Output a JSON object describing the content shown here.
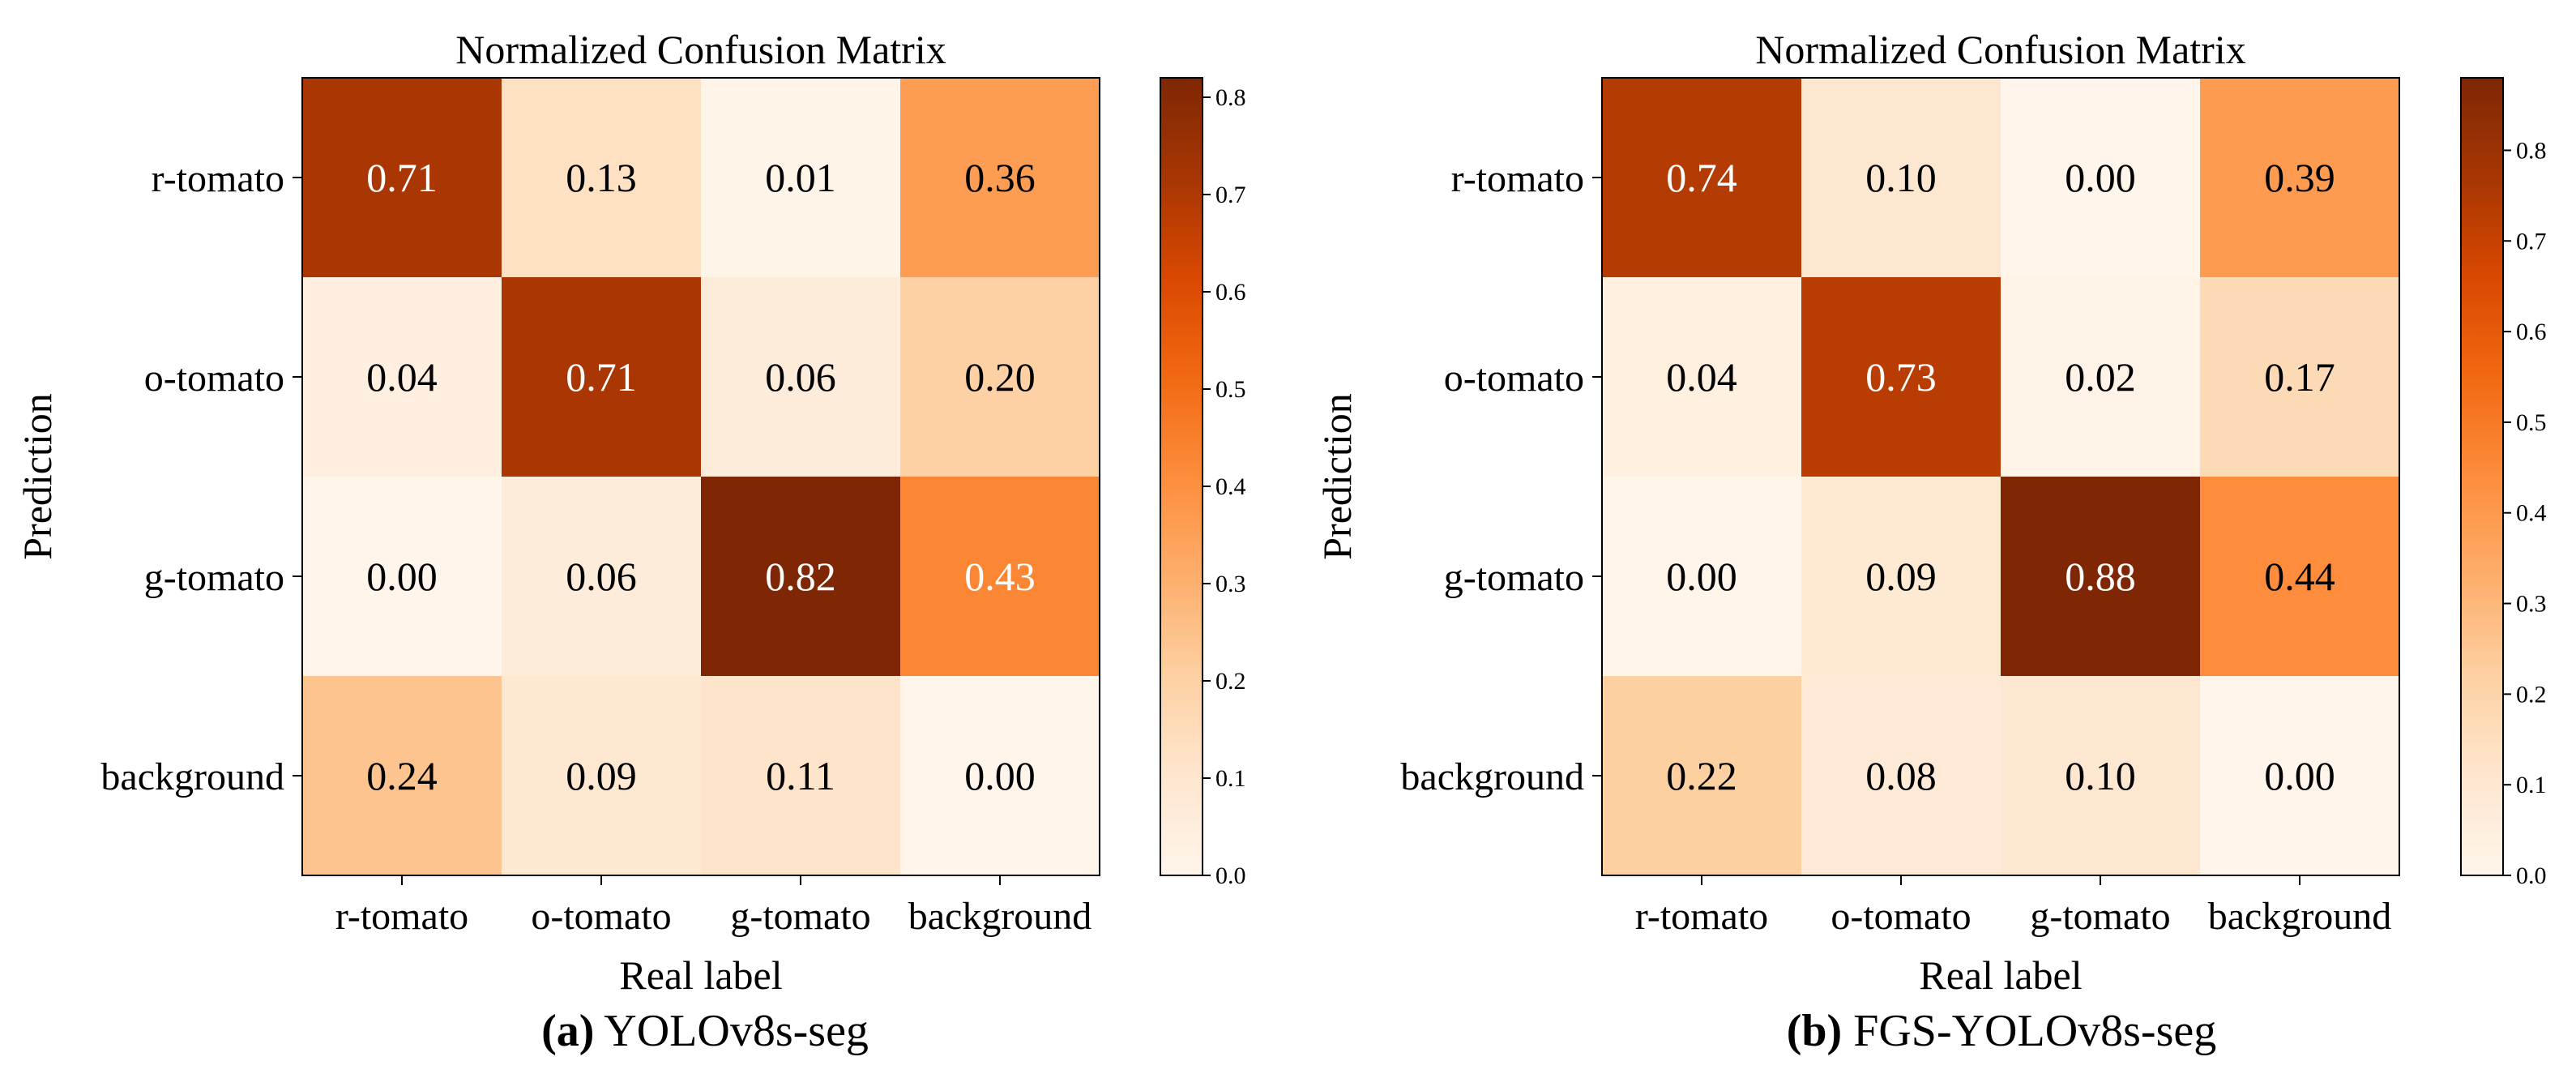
{
  "chart_data": [
    {
      "type": "heatmap",
      "title": "Normalized Confusion Matrix",
      "xlabel": "Real label",
      "ylabel": "Prediction",
      "x_categories": [
        "r-tomato",
        "o-tomato",
        "g-tomato",
        "background"
      ],
      "y_categories": [
        "r-tomato",
        "o-tomato",
        "g-tomato",
        "background"
      ],
      "values": [
        [
          0.71,
          0.13,
          0.01,
          0.36
        ],
        [
          0.04,
          0.71,
          0.06,
          0.2
        ],
        [
          0.0,
          0.06,
          0.82,
          0.43
        ],
        [
          0.24,
          0.09,
          0.11,
          0.0
        ]
      ],
      "colormap": "Oranges",
      "colorbar_range": [
        0.0,
        0.82
      ],
      "colorbar_ticks": [
        "0.0",
        "0.1",
        "0.2",
        "0.3",
        "0.4",
        "0.5",
        "0.6",
        "0.7",
        "0.8"
      ],
      "caption_letter": "(a)",
      "caption_text": "YOLOv8s-seg"
    },
    {
      "type": "heatmap",
      "title": "Normalized Confusion Matrix",
      "xlabel": "Real label",
      "ylabel": "Prediction",
      "x_categories": [
        "r-tomato",
        "o-tomato",
        "g-tomato",
        "background"
      ],
      "y_categories": [
        "r-tomato",
        "o-tomato",
        "g-tomato",
        "background"
      ],
      "values": [
        [
          0.74,
          0.1,
          0.0,
          0.39
        ],
        [
          0.04,
          0.73,
          0.02,
          0.17
        ],
        [
          0.0,
          0.09,
          0.88,
          0.44
        ],
        [
          0.22,
          0.08,
          0.1,
          0.0
        ]
      ],
      "colormap": "Oranges",
      "colorbar_range": [
        0.0,
        0.88
      ],
      "colorbar_ticks": [
        "0.0",
        "0.1",
        "0.2",
        "0.3",
        "0.4",
        "0.5",
        "0.6",
        "0.7",
        "0.8"
      ],
      "caption_letter": "(b)",
      "caption_text": "FGS-YOLOv8s-seg"
    }
  ],
  "colors": {
    "text_dark": "#000000",
    "text_light": "#ffffff",
    "cmap_stops": [
      "#fff5eb",
      "#fee6ce",
      "#fdd0a2",
      "#fdae6b",
      "#fd8d3c",
      "#f16913",
      "#d94801",
      "#a63603",
      "#7f2704"
    ]
  }
}
